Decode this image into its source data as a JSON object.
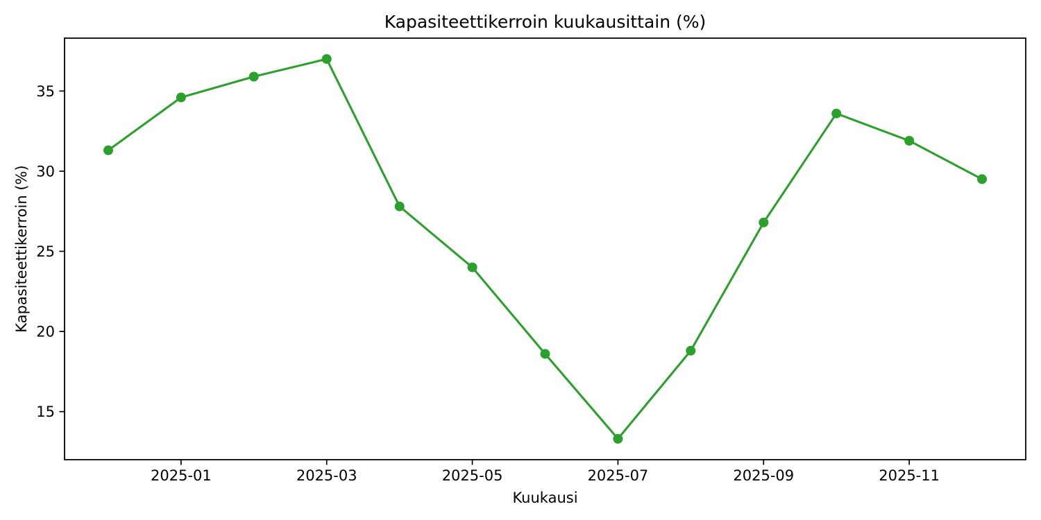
{
  "chart_data": {
    "type": "line",
    "title": "Kapasiteettikerroin kuukausittain (%)",
    "xlabel": "Kuukausi",
    "ylabel": "Kapasiteettikerroin (%)",
    "x": [
      "2024-12",
      "2025-01",
      "2025-02",
      "2025-03",
      "2025-04",
      "2025-05",
      "2025-06",
      "2025-07",
      "2025-08",
      "2025-09",
      "2025-10",
      "2025-11",
      "2025-12"
    ],
    "series": [
      {
        "name": "Kapasiteettikerroin",
        "values": [
          31.3,
          34.6,
          35.9,
          37.0,
          27.8,
          24.0,
          18.6,
          13.3,
          18.8,
          26.8,
          33.6,
          31.9,
          29.5
        ],
        "color": "#2ca02c",
        "marker": "circle"
      }
    ],
    "yticks": [
      15,
      20,
      25,
      30,
      35
    ],
    "xtick_labels": [
      "2025-01",
      "2025-03",
      "2025-05",
      "2025-07",
      "2025-09",
      "2025-11"
    ],
    "ylim": [
      12.0,
      38.3
    ],
    "grid": false,
    "legend_position": "none",
    "background_color": "#ffffff",
    "spine_color": "#000000"
  }
}
